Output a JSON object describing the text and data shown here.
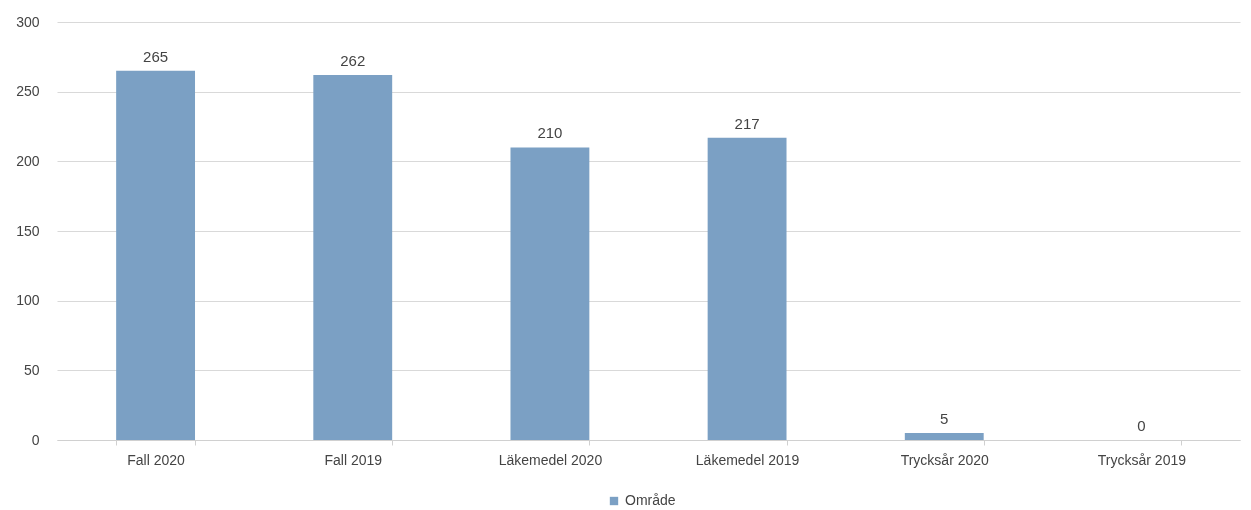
{
  "chart_data": {
    "type": "bar",
    "categories": [
      "Fall 2020",
      "Fall 2019",
      "Läkemedel 2020",
      "Läkemedel 2019",
      "Trycksår 2020",
      "Trycksår 2019"
    ],
    "series": [
      {
        "name": "Område",
        "color": "#7ba0c4",
        "values": [
          265,
          262,
          210,
          217,
          5,
          0
        ]
      }
    ],
    "ylim": [
      0,
      300
    ],
    "yticks": [
      0,
      50,
      100,
      150,
      200,
      250,
      300
    ],
    "grid": "y",
    "legend": "bottom",
    "data_labels": true
  }
}
